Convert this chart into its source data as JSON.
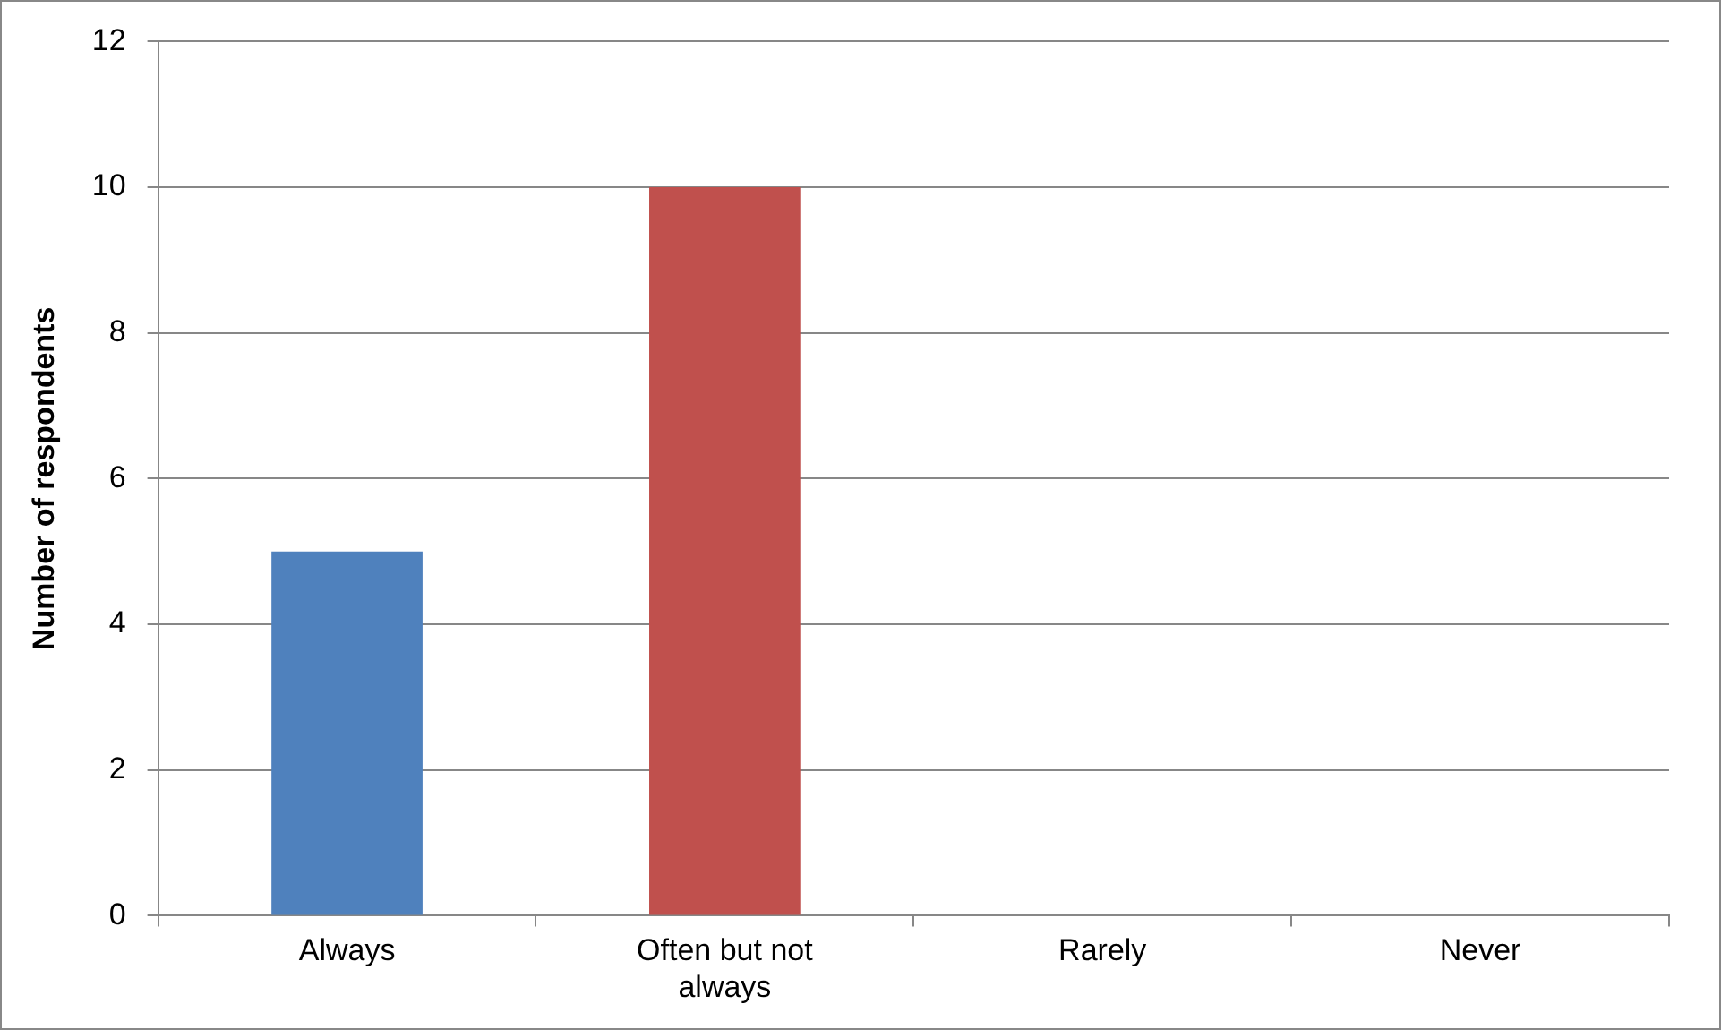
{
  "chart_data": {
    "type": "bar",
    "ylabel": "Number of respondents",
    "categories": [
      "Always",
      "Often but not always",
      "Rarely",
      "Never"
    ],
    "values": [
      5,
      10,
      0,
      0
    ],
    "colors": [
      "#4f81bd",
      "#c0504d",
      "#9bbb59",
      "#8064a2"
    ],
    "ylim": [
      0,
      12
    ],
    "yticks": [
      0,
      2,
      4,
      6,
      8,
      10,
      12
    ],
    "grid": "y",
    "legend": false
  }
}
